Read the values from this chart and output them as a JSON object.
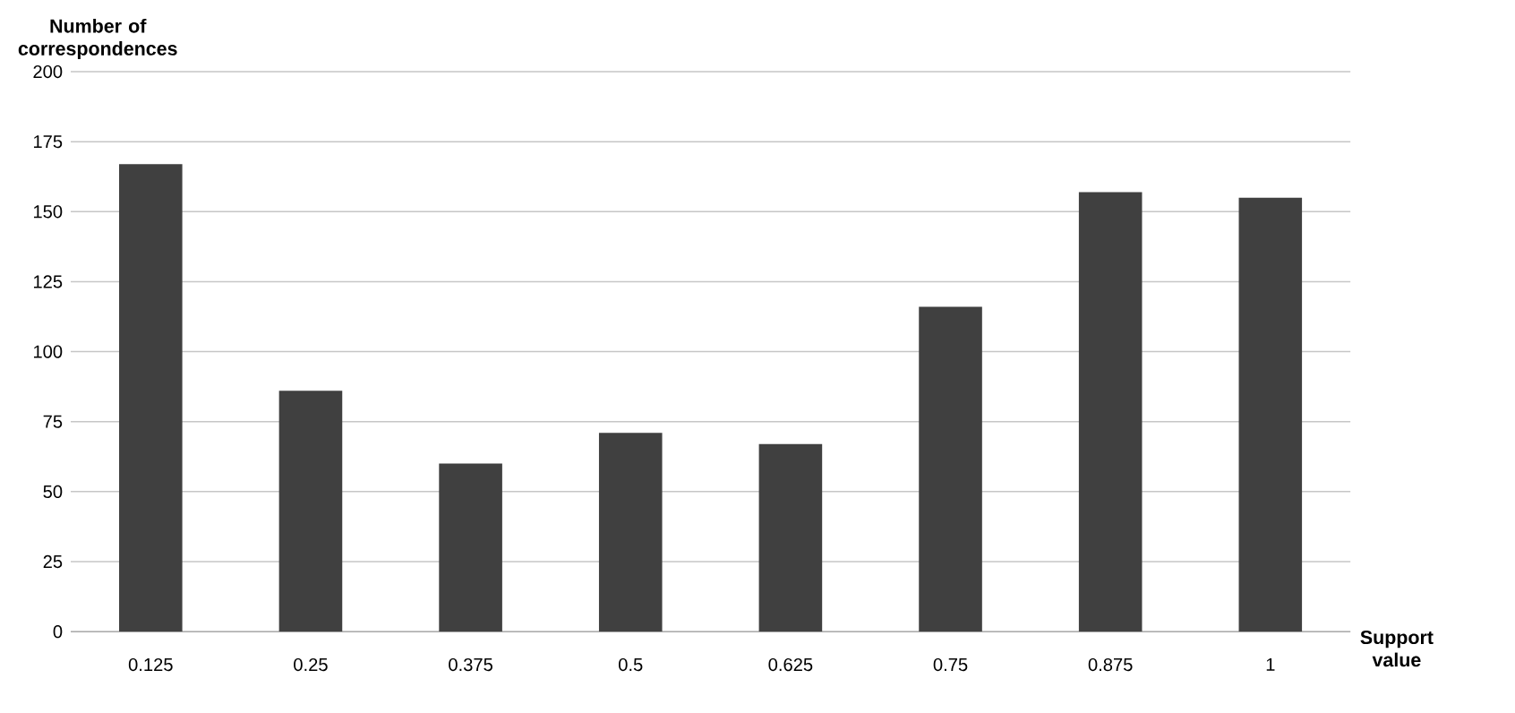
{
  "chart_data": {
    "type": "bar",
    "xlabel": "Support value",
    "ylabel": "Number of correspondences",
    "categories": [
      "0.125",
      "0.25",
      "0.375",
      "0.5",
      "0.625",
      "0.75",
      "0.875",
      "1"
    ],
    "values": [
      167,
      86,
      60,
      71,
      67,
      116,
      157,
      155
    ],
    "color": "#404040",
    "ylim": [
      0,
      200
    ],
    "yticks": [
      0,
      25,
      50,
      75,
      100,
      125,
      150,
      175,
      200
    ],
    "grid": "y"
  }
}
